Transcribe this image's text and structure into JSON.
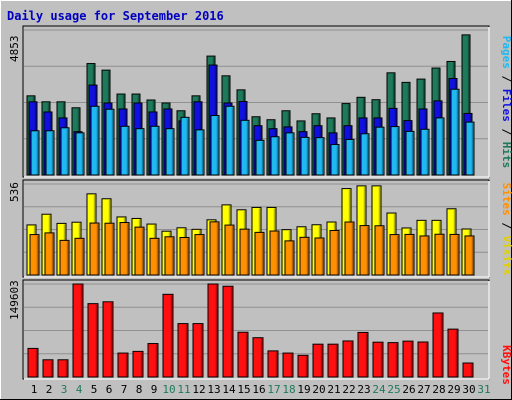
{
  "chart_data": [
    {
      "type": "bar",
      "title": "Daily usage for September 2016",
      "x": [
        "1",
        "2",
        "3",
        "4",
        "5",
        "6",
        "7",
        "8",
        "9",
        "10",
        "11",
        "12",
        "13",
        "14",
        "15",
        "16",
        "17",
        "18",
        "19",
        "20",
        "21",
        "22",
        "23",
        "24",
        "25",
        "26",
        "27",
        "28",
        "29",
        "30",
        "31"
      ],
      "weekend_days": [
        "3",
        "4",
        "10",
        "11",
        "17",
        "18",
        "24",
        "25",
        "31"
      ],
      "ymax_label": "4853",
      "ylim": [
        0,
        4853
      ],
      "right_labels": [
        "Pages",
        "Files",
        "Hits"
      ],
      "series": [
        {
          "name": "Hits",
          "color": "#1e7a5a",
          "values": [
            2650,
            2450,
            2450,
            2250,
            3730,
            3510,
            2710,
            2710,
            2510,
            2410,
            2150,
            2650,
            3980,
            3320,
            2850,
            1950,
            1850,
            2150,
            1810,
            2050,
            1910,
            2390,
            2600,
            2520,
            3420,
            3100,
            3210,
            3580,
            3800,
            4690,
            null
          ]
        },
        {
          "name": "Files",
          "color": "#1010e0",
          "values": [
            2450,
            2110,
            1910,
            1450,
            3010,
            2410,
            2210,
            2410,
            2110,
            2210,
            1810,
            2450,
            3680,
            2410,
            2460,
            1650,
            1550,
            1610,
            1450,
            1650,
            1410,
            1650,
            1910,
            1910,
            2230,
            1820,
            2210,
            2480,
            3230,
            2060,
            null
          ]
        },
        {
          "name": "Pages",
          "color": "#20b8f0",
          "values": [
            1480,
            1480,
            1580,
            1410,
            2300,
            2200,
            1630,
            1550,
            1630,
            1550,
            1930,
            1510,
            1990,
            2300,
            1830,
            1160,
            1280,
            1410,
            1260,
            1250,
            1020,
            1190,
            1380,
            1600,
            1620,
            1460,
            1530,
            1910,
            2870,
            1770,
            null
          ]
        }
      ]
    },
    {
      "type": "bar",
      "ymax_label": "536",
      "ylim": [
        0,
        536
      ],
      "right_labels": [
        "Sites",
        "Visits"
      ],
      "series": [
        {
          "name": "Visits",
          "color": "#ffff00",
          "values": [
            295,
            358,
            304,
            311,
            478,
            449,
            342,
            333,
            300,
            258,
            278,
            269,
            325,
            413,
            384,
            398,
            398,
            267,
            284,
            296,
            312,
            509,
            525,
            525,
            365,
            277,
            322,
            322,
            390,
            271,
            null
          ]
        },
        {
          "name": "Sites",
          "color": "#ff9000",
          "values": [
            238,
            248,
            204,
            216,
            306,
            305,
            309,
            282,
            216,
            225,
            221,
            238,
            313,
            294,
            270,
            251,
            259,
            201,
            222,
            218,
            262,
            312,
            291,
            290,
            238,
            239,
            230,
            240,
            239,
            230,
            null
          ]
        }
      ]
    },
    {
      "type": "bar",
      "ymax_label": "149603",
      "ylim": [
        0,
        149603
      ],
      "right_labels": [
        "KBytes"
      ],
      "series": [
        {
          "name": "KBytes",
          "color": "#ff1010",
          "values": [
            46000,
            27700,
            27700,
            149600,
            118000,
            121000,
            38500,
            41200,
            53800,
            133000,
            85900,
            85900,
            149600,
            146000,
            72000,
            63200,
            42000,
            38500,
            34900,
            52800,
            52800,
            58000,
            71700,
            56000,
            55300,
            57700,
            56300,
            103000,
            77000,
            22500,
            null
          ]
        }
      ]
    }
  ]
}
